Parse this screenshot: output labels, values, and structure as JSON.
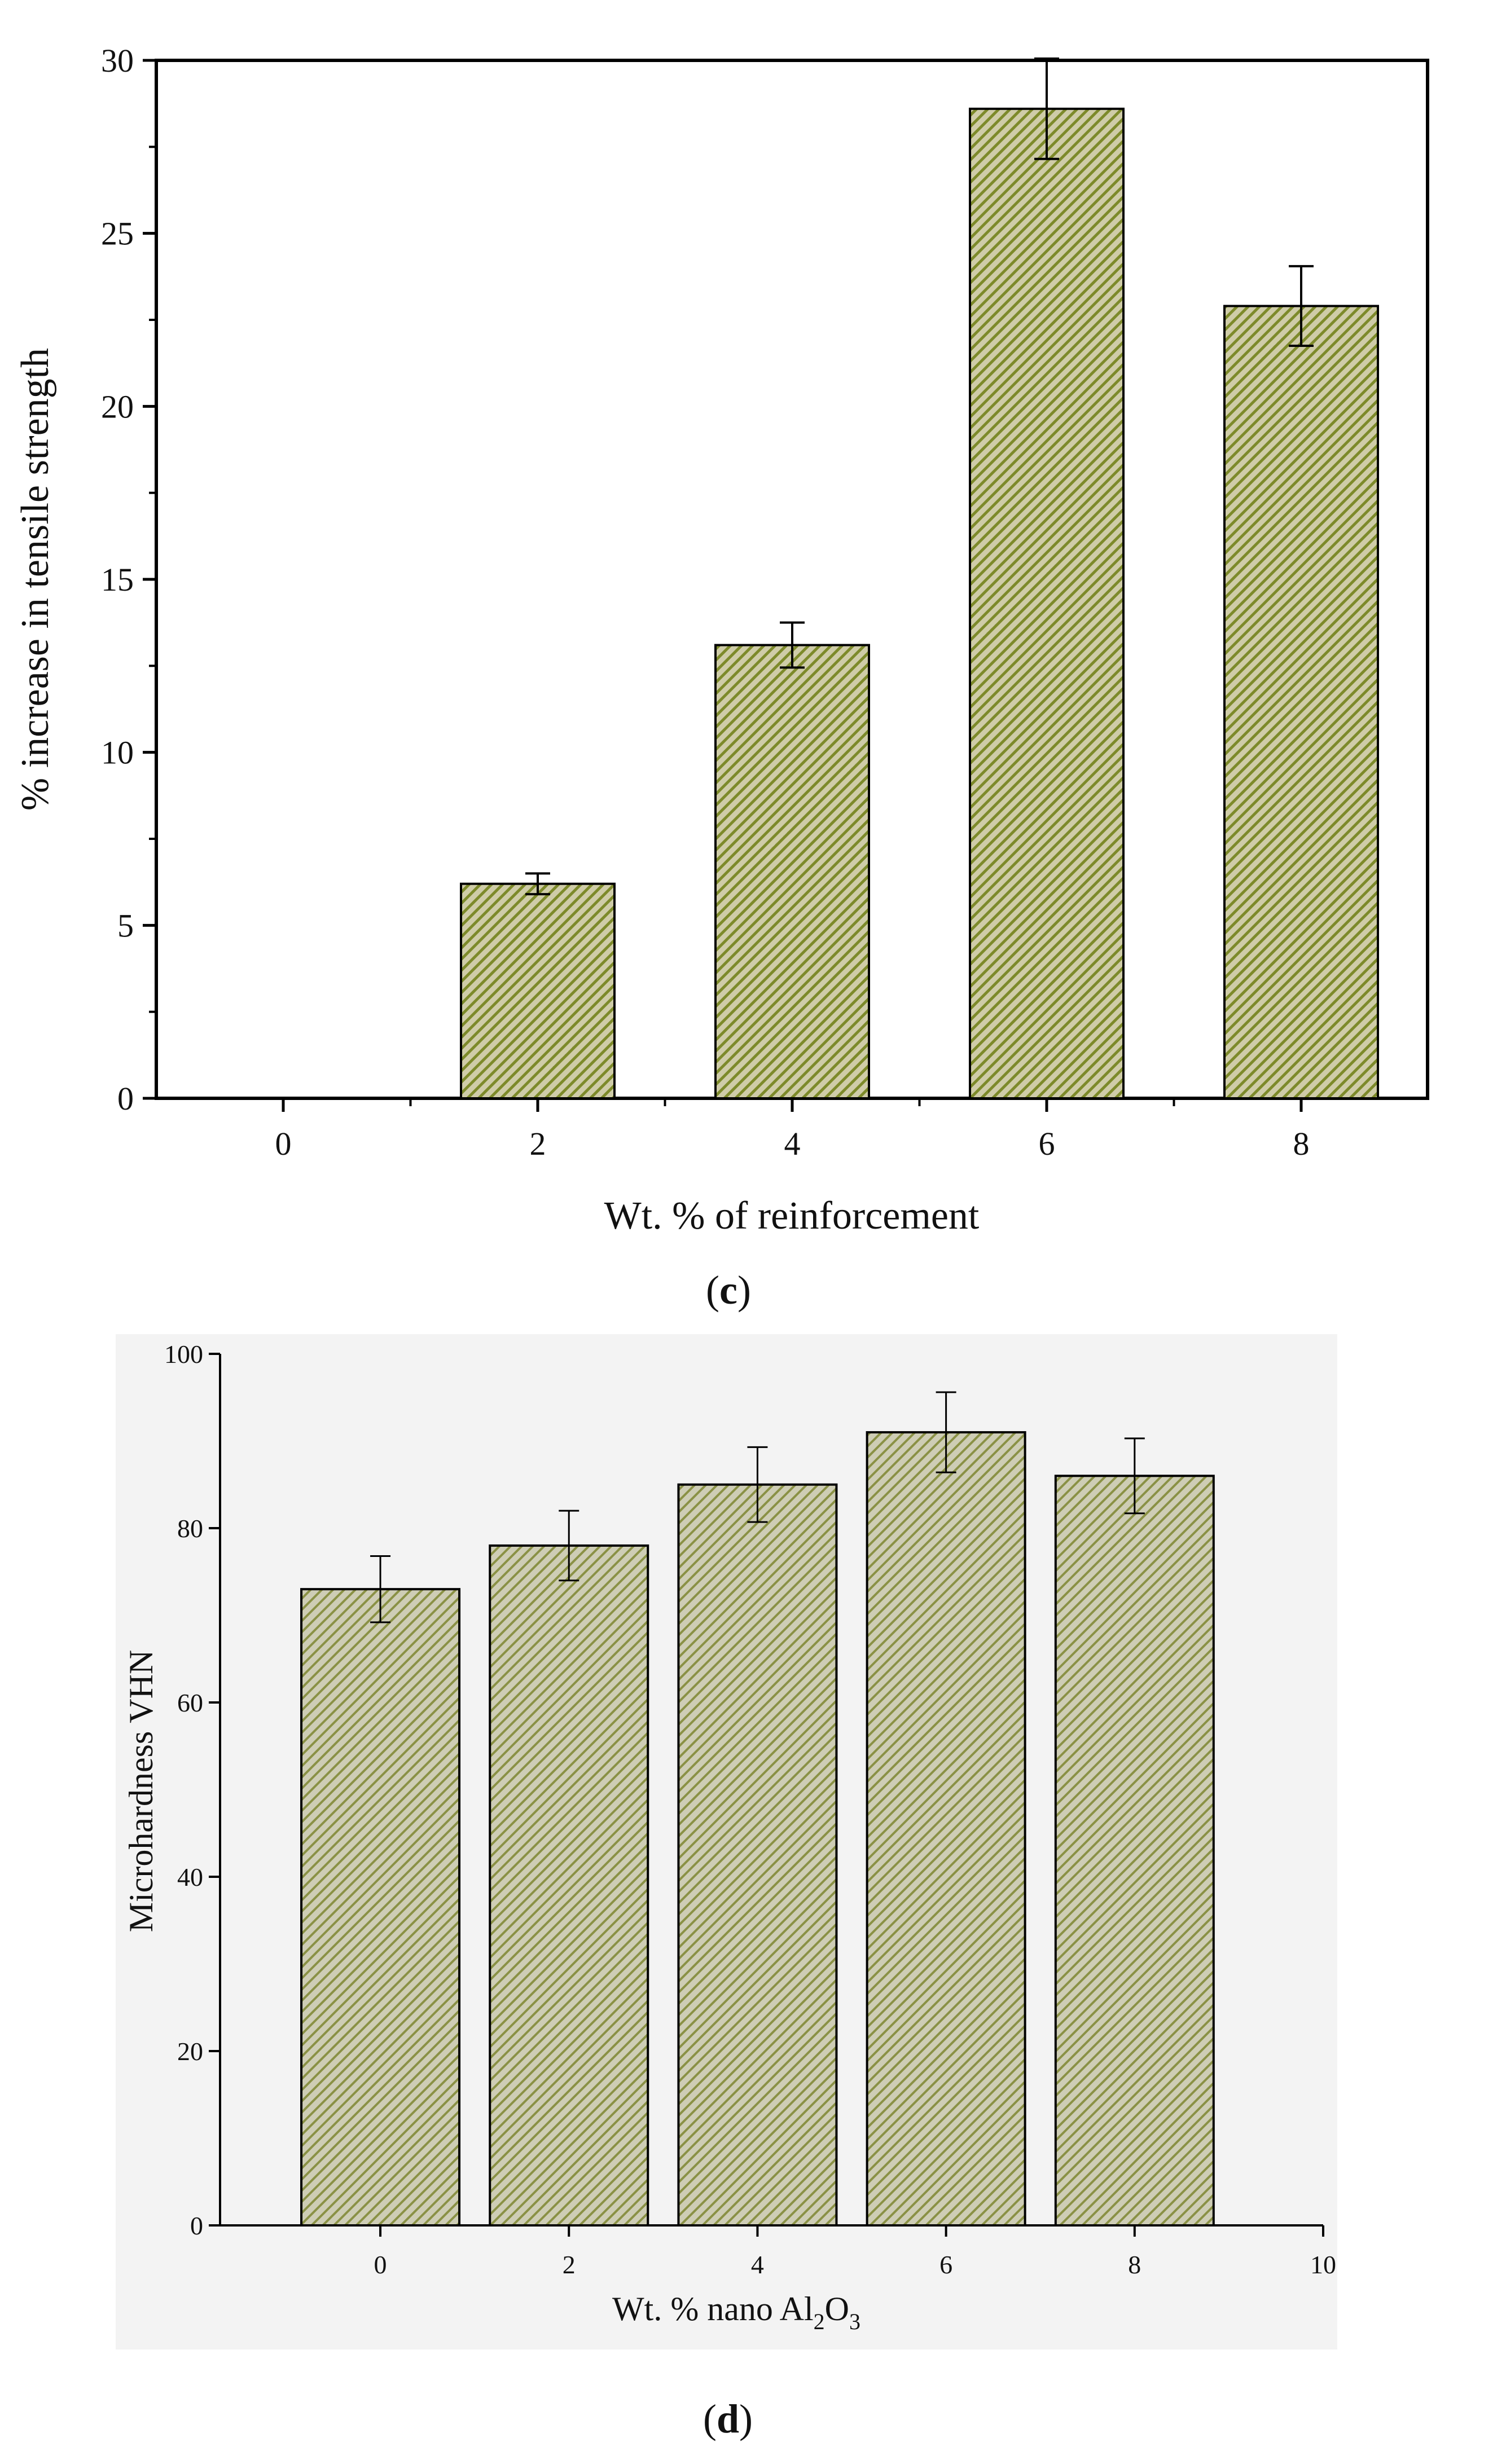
{
  "chart_data": [
    {
      "id": "c",
      "type": "bar",
      "caption_letter": "c",
      "xlabel": "Wt. % of reinforcement",
      "ylabel": "% increase in tensile strength",
      "categories": [
        "0",
        "2",
        "4",
        "6",
        "8"
      ],
      "x_ticks": [
        "0",
        "2",
        "4",
        "6",
        "8"
      ],
      "values": [
        0,
        6.2,
        13.1,
        28.6,
        22.9
      ],
      "errors": [
        0,
        0.3,
        0.65,
        1.45,
        1.15
      ],
      "ylim": [
        0,
        30
      ],
      "y_ticks": [
        "0",
        "5",
        "10",
        "15",
        "20",
        "25",
        "30"
      ],
      "y_tick_values": [
        0,
        5,
        10,
        15,
        20,
        25,
        30
      ],
      "grid": false,
      "bar_fill_colors": [
        "#c8c6a2",
        "#7d8a2a"
      ]
    },
    {
      "id": "d",
      "type": "bar",
      "caption_letter": "d",
      "xlabel": "Wt. % nano Al",
      "xlabel_sub1": "2",
      "xlabel_mid": "O",
      "xlabel_sub2": "3",
      "ylabel": "Microhardness VHN",
      "categories": [
        "0",
        "2",
        "4",
        "6",
        "8"
      ],
      "x_ticks": [
        "0",
        "2",
        "4",
        "6",
        "8",
        "10"
      ],
      "x_tick_values": [
        0,
        2,
        4,
        6,
        8,
        10
      ],
      "values": [
        73,
        78,
        85,
        91,
        86
      ],
      "errors": [
        3.8,
        4.0,
        4.3,
        4.6,
        4.3
      ],
      "xlim": [
        -1.7,
        10
      ],
      "ylim": [
        0,
        100
      ],
      "y_ticks": [
        "0",
        "20",
        "40",
        "60",
        "80",
        "100"
      ],
      "y_tick_values": [
        0,
        20,
        40,
        60,
        80,
        100
      ],
      "grid": false,
      "bar_fill_colors": [
        "#c9c8ad",
        "#8a9145"
      ]
    }
  ]
}
